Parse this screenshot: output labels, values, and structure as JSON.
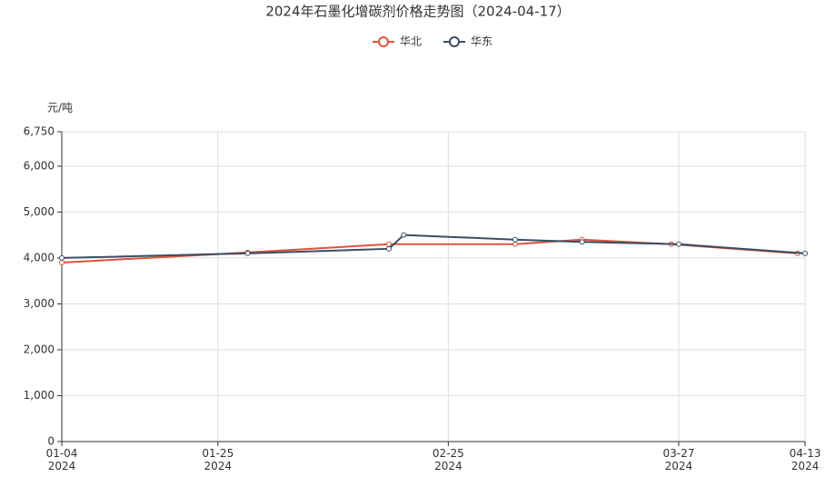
{
  "chart_data": {
    "type": "line",
    "title": "2024年石墨化增碳剂价格走势图（2024-04-17）",
    "y_label": "元/吨",
    "series": [
      {
        "name": "华北",
        "color": "#e0533a",
        "x": [
          "2024-01-04",
          "2024-01-29",
          "2024-02-17",
          "2024-03-05",
          "2024-03-14",
          "2024-03-26",
          "2024-04-12"
        ],
        "values": [
          3900,
          4120,
          4300,
          4300,
          4400,
          4300,
          4100
        ]
      },
      {
        "name": "华东",
        "color": "#3b4e63",
        "x": [
          "2024-01-04",
          "2024-01-29",
          "2024-02-17",
          "2024-02-19",
          "2024-03-05",
          "2024-03-14",
          "2024-03-27",
          "2024-04-13"
        ],
        "values": [
          4000,
          4100,
          4200,
          4500,
          4400,
          4350,
          4300,
          4100
        ]
      }
    ],
    "xlim": [
      "2024-01-04",
      "2024-04-13"
    ],
    "xticks": [
      {
        "value": "2024-01-04",
        "label": "01-04\n2024"
      },
      {
        "value": "2024-01-25",
        "label": "01-25\n2024"
      },
      {
        "value": "2024-02-25",
        "label": "02-25\n2024"
      },
      {
        "value": "2024-03-27",
        "label": "03-27\n2024"
      },
      {
        "value": "2024-04-13",
        "label": "04-13\n2024"
      }
    ],
    "ylim": [
      0,
      6750
    ],
    "yticks": [
      0,
      {
        "value": 1000,
        "label": "1,000"
      },
      {
        "value": 2000,
        "label": "2,000"
      },
      {
        "value": 3000,
        "label": "3,000"
      },
      {
        "value": 4000,
        "label": "4,000"
      },
      {
        "value": 5000,
        "label": "5,000"
      },
      {
        "value": 6000,
        "label": "6,000"
      },
      {
        "value": 6750,
        "label": "6,750"
      }
    ],
    "grid": true
  }
}
